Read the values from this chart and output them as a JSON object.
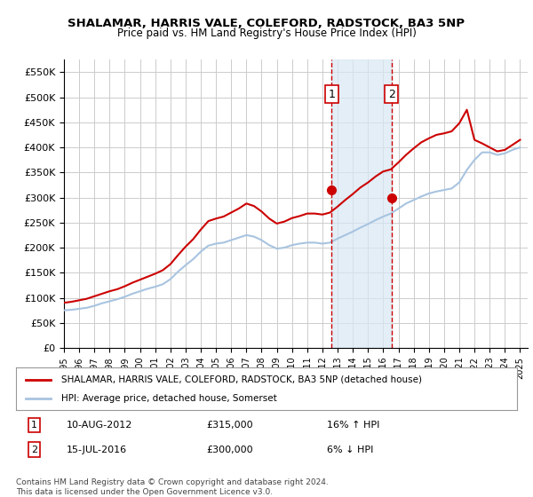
{
  "title": "SHALAMAR, HARRIS VALE, COLEFORD, RADSTOCK, BA3 5NP",
  "subtitle": "Price paid vs. HM Land Registry's House Price Index (HPI)",
  "ylabel_ticks": [
    "£0",
    "£50K",
    "£100K",
    "£150K",
    "£200K",
    "£250K",
    "£300K",
    "£350K",
    "£400K",
    "£450K",
    "£500K",
    "£550K"
  ],
  "ytick_values": [
    0,
    50000,
    100000,
    150000,
    200000,
    250000,
    300000,
    350000,
    400000,
    450000,
    500000,
    550000
  ],
  "ylim": [
    0,
    575000
  ],
  "xlim_start": 1995.0,
  "xlim_end": 2025.5,
  "marker1_x": 2012.6,
  "marker1_y": 315000,
  "marker2_x": 2016.54,
  "marker2_y": 300000,
  "shade_x1": 2012.6,
  "shade_x2": 2016.54,
  "legend_label1": "SHALAMAR, HARRIS VALE, COLEFORD, RADSTOCK, BA3 5NP (detached house)",
  "legend_label2": "HPI: Average price, detached house, Somerset",
  "table_row1": "1    10-AUG-2012    £315,000    16% ↑ HPI",
  "table_row2": "2    15-JUL-2016    £300,000    6% ↓ HPI",
  "footnote1": "Contains HM Land Registry data © Crown copyright and database right 2024.",
  "footnote2": "This data is licensed under the Open Government Licence v3.0.",
  "hpi_color": "#a8c4e0",
  "price_color": "#cc0000",
  "background_color": "#ffffff",
  "grid_color": "#cccccc",
  "hpi_years": [
    1995.0,
    1995.5,
    1996.0,
    1996.5,
    1997.0,
    1997.5,
    1998.0,
    1998.5,
    1999.0,
    1999.5,
    2000.0,
    2000.5,
    2001.0,
    2001.5,
    2002.0,
    2002.5,
    2003.0,
    2003.5,
    2004.0,
    2004.5,
    2005.0,
    2005.5,
    2006.0,
    2006.5,
    2007.0,
    2007.5,
    2008.0,
    2008.5,
    2009.0,
    2009.5,
    2010.0,
    2010.5,
    2011.0,
    2011.5,
    2012.0,
    2012.5,
    2013.0,
    2013.5,
    2014.0,
    2014.5,
    2015.0,
    2015.5,
    2016.0,
    2016.5,
    2017.0,
    2017.5,
    2018.0,
    2018.5,
    2019.0,
    2019.5,
    2020.0,
    2020.5,
    2021.0,
    2021.5,
    2022.0,
    2022.5,
    2023.0,
    2023.5,
    2024.0,
    2024.5,
    2025.0
  ],
  "hpi_values": [
    75000,
    76000,
    78000,
    80000,
    84000,
    89000,
    93000,
    97000,
    102000,
    108000,
    113000,
    118000,
    122000,
    127000,
    137000,
    152000,
    165000,
    177000,
    192000,
    204000,
    208000,
    210000,
    215000,
    220000,
    225000,
    222000,
    215000,
    205000,
    198000,
    200000,
    205000,
    208000,
    210000,
    210000,
    208000,
    210000,
    218000,
    225000,
    232000,
    240000,
    247000,
    255000,
    262000,
    268000,
    278000,
    288000,
    295000,
    302000,
    308000,
    312000,
    315000,
    318000,
    330000,
    355000,
    375000,
    390000,
    390000,
    385000,
    388000,
    395000,
    400000
  ],
  "price_years": [
    1995.0,
    1995.5,
    1996.0,
    1996.5,
    1997.0,
    1997.5,
    1998.0,
    1998.5,
    1999.0,
    1999.5,
    2000.0,
    2000.5,
    2001.0,
    2001.5,
    2002.0,
    2002.5,
    2003.0,
    2003.5,
    2004.0,
    2004.5,
    2005.0,
    2005.5,
    2006.0,
    2006.5,
    2007.0,
    2007.5,
    2008.0,
    2008.5,
    2009.0,
    2009.5,
    2010.0,
    2010.5,
    2011.0,
    2011.5,
    2012.0,
    2012.5,
    2013.0,
    2013.5,
    2014.0,
    2014.5,
    2015.0,
    2015.5,
    2016.0,
    2016.5,
    2017.0,
    2017.5,
    2018.0,
    2018.5,
    2019.0,
    2019.5,
    2020.0,
    2020.5,
    2021.0,
    2021.5,
    2022.0,
    2022.5,
    2023.0,
    2023.5,
    2024.0,
    2024.5,
    2025.0
  ],
  "price_values": [
    90000,
    92000,
    95000,
    98000,
    103000,
    108000,
    113000,
    117000,
    123000,
    130000,
    136000,
    142000,
    148000,
    155000,
    167000,
    185000,
    202000,
    217000,
    236000,
    253000,
    258000,
    262000,
    270000,
    278000,
    288000,
    283000,
    272000,
    258000,
    248000,
    252000,
    259000,
    263000,
    268000,
    268000,
    266000,
    270000,
    282000,
    295000,
    307000,
    320000,
    330000,
    342000,
    352000,
    356000,
    370000,
    385000,
    398000,
    410000,
    418000,
    425000,
    428000,
    432000,
    448000,
    475000,
    415000,
    408000,
    400000,
    392000,
    395000,
    405000,
    415000
  ],
  "xtick_years": [
    1995,
    1996,
    1997,
    1998,
    1999,
    2000,
    2001,
    2002,
    2003,
    2004,
    2005,
    2006,
    2007,
    2008,
    2009,
    2010,
    2011,
    2012,
    2013,
    2014,
    2015,
    2016,
    2017,
    2018,
    2019,
    2020,
    2021,
    2022,
    2023,
    2024,
    2025
  ]
}
